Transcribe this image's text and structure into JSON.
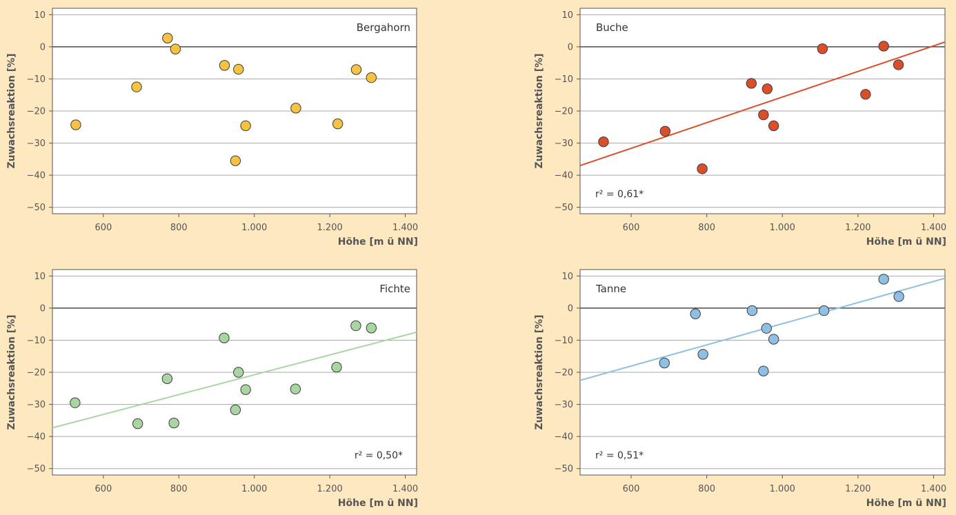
{
  "chart_data": [
    {
      "type": "scatter",
      "title": "Bergahorn",
      "xlabel": "Höhe [m ü NN]",
      "ylabel": "Zuwachsreaktion [%]",
      "xlim": [
        465,
        1430
      ],
      "ylim": [
        -52,
        12
      ],
      "xticks": [
        600,
        800,
        1000,
        1200,
        1400
      ],
      "xtick_labels": [
        "600",
        "800",
        "1.000",
        "1.200",
        "1.400"
      ],
      "yticks": [
        10,
        0,
        -10,
        -20,
        -30,
        -40,
        -50
      ],
      "ytick_labels": [
        "10",
        "0",
        "−10",
        "−20",
        "−30",
        "−40",
        "−50"
      ],
      "grid": true,
      "color": "#f5c242",
      "x": [
        527,
        688,
        770,
        791,
        921,
        958,
        977,
        950,
        1110,
        1221,
        1270,
        1310
      ],
      "y": [
        -24.3,
        -12.5,
        2.7,
        -0.7,
        -5.8,
        -7.0,
        -24.6,
        -35.5,
        -19.1,
        -24.0,
        -7.1,
        -9.6
      ],
      "trend": null,
      "annotation": ""
    },
    {
      "type": "scatter",
      "title": "Buche",
      "xlabel": "Höhe [m ü NN]",
      "ylabel": "Zuwachsreaktion [%]",
      "xlim": [
        465,
        1430
      ],
      "ylim": [
        -52,
        12
      ],
      "xticks": [
        600,
        800,
        1000,
        1200,
        1400
      ],
      "xtick_labels": [
        "600",
        "800",
        "1.000",
        "1.200",
        "1.400"
      ],
      "yticks": [
        10,
        0,
        -10,
        -20,
        -30,
        -40,
        -50
      ],
      "ytick_labels": [
        "10",
        "0",
        "−10",
        "−20",
        "−30",
        "−40",
        "−50"
      ],
      "grid": true,
      "color": "#d94f2b",
      "x": [
        527,
        690,
        788,
        918,
        950,
        960,
        977,
        1106,
        1220,
        1268,
        1307
      ],
      "y": [
        -29.6,
        -26.3,
        -38.0,
        -11.4,
        -21.2,
        -13.1,
        -24.6,
        -0.6,
        -14.8,
        0.2,
        -5.6
      ],
      "trend": {
        "x": [
          465,
          1430
        ],
        "y": [
          -37.0,
          1.5
        ]
      },
      "annotation": "r² = 0,61*"
    },
    {
      "type": "scatter",
      "title": "Fichte",
      "xlabel": "Höhe [m ü NN]",
      "ylabel": "Zuwachsreaktion [%]",
      "xlim": [
        465,
        1430
      ],
      "ylim": [
        -52,
        12
      ],
      "xticks": [
        600,
        800,
        1000,
        1200,
        1400
      ],
      "xtick_labels": [
        "600",
        "800",
        "1.000",
        "1.200",
        "1.400"
      ],
      "yticks": [
        10,
        0,
        -10,
        -20,
        -30,
        -40,
        -50
      ],
      "ytick_labels": [
        "10",
        "0",
        "−10",
        "−20",
        "−30",
        "−40",
        "−50"
      ],
      "grid": true,
      "color": "#a8d5a2",
      "x": [
        525,
        691,
        769,
        787,
        920,
        958,
        977,
        950,
        1109,
        1218,
        1269,
        1310
      ],
      "y": [
        -29.5,
        -36.0,
        -22.0,
        -35.8,
        -9.3,
        -20.0,
        -25.4,
        -31.7,
        -25.2,
        -18.4,
        -5.5,
        -6.2
      ],
      "trend": {
        "x": [
          465,
          1430
        ],
        "y": [
          -37.3,
          -7.5
        ]
      },
      "annotation": "r² = 0,50*"
    },
    {
      "type": "scatter",
      "title": "Tanne",
      "xlabel": "Höhe [m ü NN]",
      "ylabel": "Zuwachsreaktion [%]",
      "xlim": [
        465,
        1430
      ],
      "ylim": [
        -52,
        12
      ],
      "xticks": [
        600,
        800,
        1000,
        1200,
        1400
      ],
      "xtick_labels": [
        "600",
        "800",
        "1.000",
        "1.200",
        "1.400"
      ],
      "yticks": [
        10,
        0,
        -10,
        -20,
        -30,
        -40,
        -50
      ],
      "ytick_labels": [
        "10",
        "0",
        "−10",
        "−20",
        "−30",
        "−40",
        "−50"
      ],
      "grid": true,
      "color": "#8fc0e4",
      "x": [
        688,
        770,
        790,
        920,
        958,
        977,
        950,
        1110,
        1268,
        1308
      ],
      "y": [
        -17.1,
        -1.8,
        -14.4,
        -0.8,
        -6.3,
        -9.7,
        -19.6,
        -0.8,
        9.0,
        3.6
      ],
      "trend": {
        "x": [
          465,
          1430
        ],
        "y": [
          -22.5,
          9.3
        ]
      },
      "annotation": "r² = 0,51*"
    }
  ]
}
